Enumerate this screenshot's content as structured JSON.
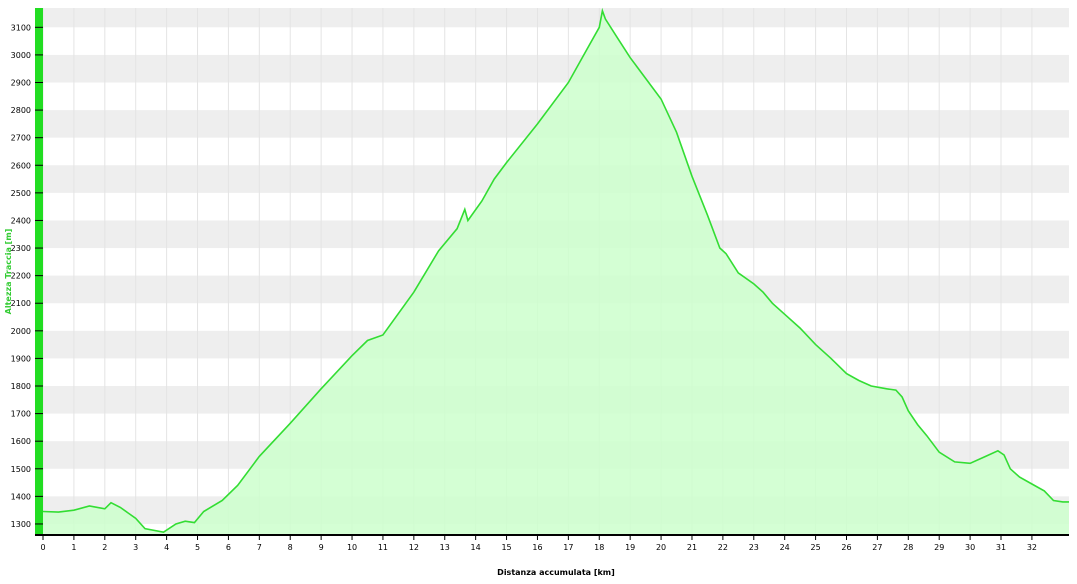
{
  "chart_data": {
    "type": "area",
    "title": "",
    "xlabel": "Distanza accumulata [km]",
    "ylabel": "Altezza Traccia [m]",
    "xlim": [
      0,
      33.2
    ],
    "ylim": [
      1260,
      3170
    ],
    "grid": true,
    "legend": "none",
    "x_ticks": [
      0,
      1,
      2,
      3,
      4,
      5,
      6,
      7,
      8,
      9,
      10,
      11,
      12,
      13,
      14,
      15,
      16,
      17,
      18,
      19,
      20,
      21,
      22,
      23,
      24,
      25,
      26,
      27,
      28,
      29,
      30,
      31,
      32
    ],
    "y_ticks": [
      1300,
      1400,
      1500,
      1600,
      1700,
      1800,
      1900,
      2000,
      2100,
      2200,
      2300,
      2400,
      2500,
      2600,
      2700,
      2800,
      2900,
      3000,
      3100
    ],
    "colors": {
      "line": "#33dd33",
      "fill": "#ccffcc",
      "band": "#eeeeee",
      "ylabel": "#33cc33",
      "left_bar": "#22dd22"
    },
    "series": [
      {
        "x": [
          0,
          0.5,
          1.0,
          1.5,
          2.0,
          2.2,
          2.5,
          3.0,
          3.3,
          3.9,
          4.3,
          4.6,
          4.9,
          5.2,
          5.8,
          6.3,
          7.0,
          8.0,
          9.0,
          10.0,
          10.5,
          11.0,
          12.0,
          12.8,
          13.4,
          13.65,
          13.75,
          14.2,
          14.6,
          15.0,
          16.0,
          17.0,
          17.6,
          18.0,
          18.1,
          18.2,
          18.6,
          19.0,
          20.0,
          20.5,
          21.0,
          21.5,
          21.9,
          22.1,
          22.5,
          23.0,
          23.3,
          23.6,
          24.0,
          24.5,
          25.0,
          25.5,
          26.0,
          26.4,
          26.8,
          27.3,
          27.6,
          27.8,
          28.0,
          28.3,
          28.6,
          29.0,
          29.5,
          30.0,
          30.5,
          30.9,
          31.1,
          31.3,
          31.6,
          32.0,
          32.4,
          32.7,
          33.0,
          33.2
        ],
        "values": [
          1345,
          1343,
          1350,
          1365,
          1355,
          1377,
          1360,
          1320,
          1283,
          1270,
          1300,
          1310,
          1305,
          1345,
          1385,
          1440,
          1545,
          1665,
          1790,
          1910,
          1965,
          1985,
          2140,
          2290,
          2370,
          2440,
          2400,
          2470,
          2550,
          2610,
          2750,
          2900,
          3020,
          3100,
          3160,
          3130,
          3060,
          2990,
          2840,
          2720,
          2560,
          2420,
          2300,
          2280,
          2210,
          2170,
          2140,
          2100,
          2060,
          2010,
          1950,
          1900,
          1845,
          1820,
          1800,
          1790,
          1785,
          1760,
          1710,
          1660,
          1620,
          1560,
          1525,
          1520,
          1545,
          1565,
          1550,
          1500,
          1470,
          1445,
          1420,
          1385,
          1380,
          1380
        ]
      }
    ]
  }
}
